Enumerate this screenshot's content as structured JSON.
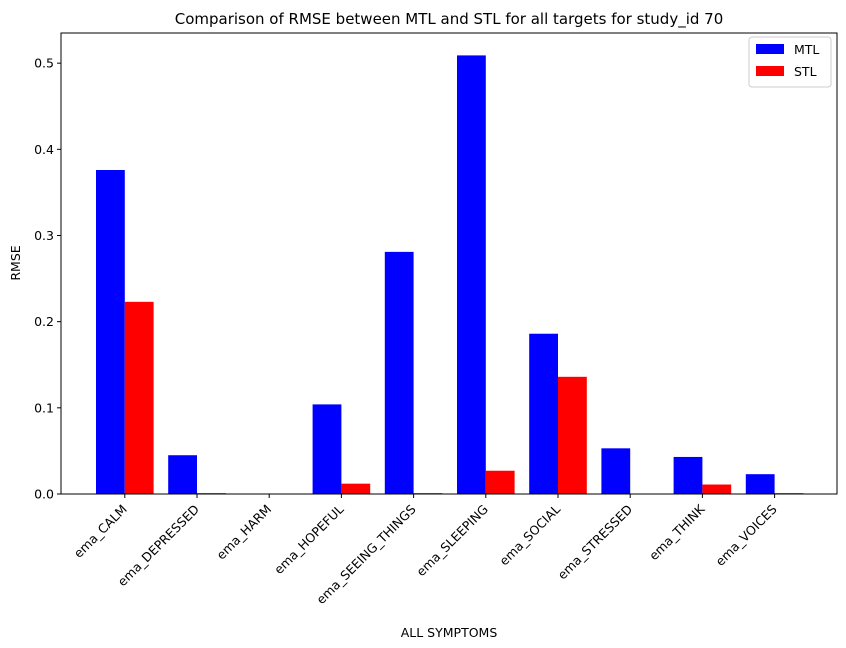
{
  "chart_data": {
    "type": "bar",
    "title": "Comparison of RMSE between MTL and STL for all targets for study_id 70",
    "xlabel": "ALL SYMPTOMS",
    "ylabel": "RMSE",
    "categories": [
      "ema_CALM",
      "ema_DEPRESSED",
      "ema_HARM",
      "ema_HOPEFUL",
      "ema_SEEING_THINGS",
      "ema_SLEEPING",
      "ema_SOCIAL",
      "ema_STRESSED",
      "ema_THINK",
      "ema_VOICES"
    ],
    "series": [
      {
        "name": "MTL",
        "color": "#0000ff",
        "values": [
          0.376,
          0.045,
          0.0,
          0.104,
          0.281,
          0.509,
          0.186,
          0.053,
          0.043,
          0.023
        ]
      },
      {
        "name": "STL",
        "color": "#ff0000",
        "values": [
          0.223,
          0.001,
          0.0,
          0.012,
          0.001,
          0.027,
          0.136,
          0.0,
          0.011,
          0.001
        ]
      }
    ],
    "ylim": [
      0,
      0.535
    ],
    "yticks": [
      0.0,
      0.1,
      0.2,
      0.3,
      0.4,
      0.5
    ],
    "ytick_labels": [
      "0.0",
      "0.1",
      "0.2",
      "0.3",
      "0.4",
      "0.5"
    ],
    "grid": false,
    "legend_position": "top-right"
  }
}
